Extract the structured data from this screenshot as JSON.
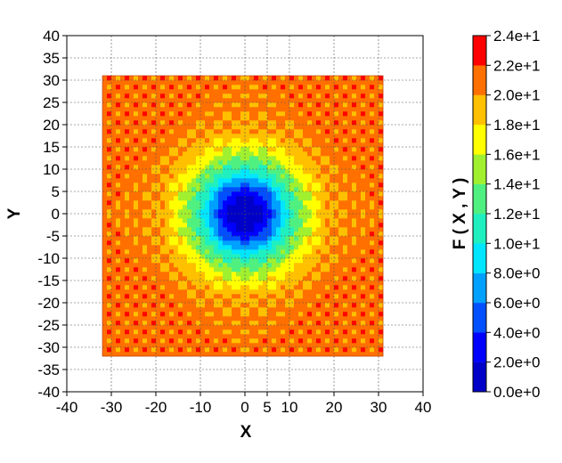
{
  "chart_data": {
    "type": "heatmap",
    "title": "",
    "xlabel": "X",
    "ylabel": "Y",
    "xlim": [
      -40,
      40
    ],
    "ylim": [
      -40,
      40
    ],
    "grid": true,
    "x_ticks": [
      -40,
      -30,
      -20,
      -10,
      0,
      5,
      10,
      20,
      30,
      40
    ],
    "x_tick_labels": [
      "-40",
      "-30",
      "-20",
      "-10",
      "0",
      "5",
      "10",
      "20",
      "30",
      "40"
    ],
    "y_ticks": [
      -40,
      -35,
      -30,
      -25,
      -20,
      -15,
      -10,
      -5,
      0,
      5,
      10,
      15,
      20,
      25,
      30,
      35,
      40
    ],
    "y_tick_labels": [
      "-40",
      "-35",
      "-30",
      "-25",
      "-20",
      "-15",
      "-10",
      "-5",
      "0",
      "5",
      "10",
      "15",
      "20",
      "25",
      "30",
      "35",
      "40"
    ],
    "data_extent": {
      "x": [
        -32,
        31
      ],
      "y": [
        -32,
        31
      ]
    },
    "description_function": "radial bowl: minimum 0 at origin rising to ~20-22 at radius >= 20, with periodic ripples",
    "colorbar": {
      "label": "F ( X , Y )",
      "levels": [
        0,
        2,
        4,
        6,
        8,
        10,
        12,
        14,
        16,
        18,
        20,
        22,
        24
      ],
      "level_labels": [
        "0.0e+0",
        "2.0e+0",
        "4.0e+0",
        "6.0e+0",
        "8.0e+0",
        "1.0e+1",
        "1.2e+1",
        "1.4e+1",
        "1.6e+1",
        "1.8e+1",
        "2.0e+1",
        "2.2e+1",
        "2.4e+1"
      ],
      "colors": [
        "#0000c8",
        "#0000ff",
        "#0050ff",
        "#00a0ff",
        "#00e6ff",
        "#20f0c0",
        "#50f080",
        "#a0f030",
        "#ffff00",
        "#ffc000",
        "#ff7000",
        "#ff0000"
      ]
    }
  }
}
